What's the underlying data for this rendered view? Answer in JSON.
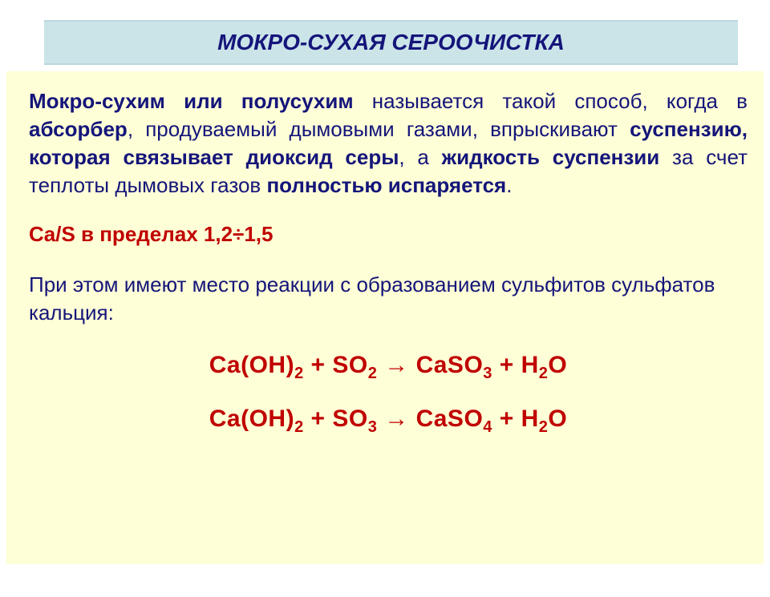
{
  "colors": {
    "title_bg": "#cae4e8",
    "title_text": "#15157a",
    "content_bg": "#feffd7",
    "body_text": "#15157a",
    "accent_text": "#c00000"
  },
  "typography": {
    "title_fontsize": 28,
    "body_fontsize": 26,
    "equation_fontsize": 30
  },
  "title": "МОКРО-СУХАЯ СЕРООЧИСТКА",
  "para": {
    "t1": "Мокро-сухим или полусухим",
    "t2": " называется такой способ, когда в ",
    "t3": "абсорбер",
    "t4": ", продуваемый дымовыми газами, впрыскивают ",
    "t5": "суспензию, которая связывает диоксид серы",
    "t6": ", а ",
    "t7": "жидкость суспензии",
    "t8": " за счет теплоты дымовых газов ",
    "t9": "полностью испаряется",
    "t10": "."
  },
  "ratio": {
    "prefix": "Ca/S в пределах 1,2",
    "symbol": "÷",
    "suffix": "1,5",
    "range_low": 1.2,
    "range_high": 1.5
  },
  "reaction_intro": "При этом имеют место реакции с образованием сульфитов сульфатов кальция:",
  "equations": [
    {
      "reactant1_base": "Ca(OH)",
      "reactant1_sub": "2",
      "plus1": "  +  ",
      "reactant2_base": "SO",
      "reactant2_sub": "2",
      "arrow": "   →   ",
      "product1_base": "CaSO",
      "product1_sub": "3",
      "plus2": "   +   ",
      "product2_base": "H",
      "product2_sub1": "2",
      "product2_tail": "O"
    },
    {
      "reactant1_base": "Ca(OH)",
      "reactant1_sub": "2",
      "plus1": "  +  ",
      "reactant2_base": "SO",
      "reactant2_sub": "3",
      "arrow": "   →   ",
      "product1_base": "CaSO",
      "product1_sub": "4",
      "plus2": "   +   ",
      "product2_base": "H",
      "product2_sub1": "2",
      "product2_tail": "O"
    }
  ]
}
